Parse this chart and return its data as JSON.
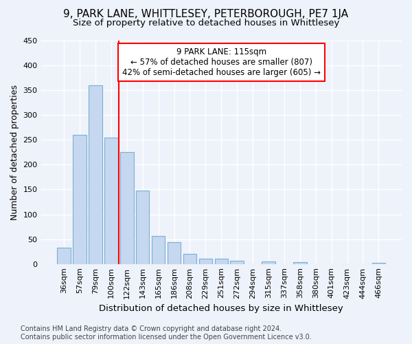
{
  "title": "9, PARK LANE, WHITTLESEY, PETERBOROUGH, PE7 1JA",
  "subtitle": "Size of property relative to detached houses in Whittlesey",
  "xlabel": "Distribution of detached houses by size in Whittlesey",
  "ylabel": "Number of detached properties",
  "categories": [
    "36sqm",
    "57sqm",
    "79sqm",
    "100sqm",
    "122sqm",
    "143sqm",
    "165sqm",
    "186sqm",
    "208sqm",
    "229sqm",
    "251sqm",
    "272sqm",
    "294sqm",
    "315sqm",
    "337sqm",
    "358sqm",
    "380sqm",
    "401sqm",
    "423sqm",
    "444sqm",
    "466sqm"
  ],
  "values": [
    33,
    260,
    360,
    255,
    225,
    148,
    57,
    44,
    20,
    11,
    10,
    7,
    0,
    5,
    0,
    4,
    0,
    0,
    0,
    0,
    3
  ],
  "bar_color": "#c5d8f0",
  "bar_edge_color": "#7bafd4",
  "vline_index": 4,
  "vline_color": "red",
  "annotation_text": "9 PARK LANE: 115sqm\n← 57% of detached houses are smaller (807)\n42% of semi-detached houses are larger (605) →",
  "annotation_box_color": "white",
  "annotation_box_edge_color": "red",
  "footer_text": "Contains HM Land Registry data © Crown copyright and database right 2024.\nContains public sector information licensed under the Open Government Licence v3.0.",
  "ylim": [
    0,
    450
  ],
  "background_color": "#eef2fa",
  "grid_color": "white",
  "title_fontsize": 11,
  "subtitle_fontsize": 9.5,
  "ylabel_fontsize": 9,
  "xlabel_fontsize": 9.5,
  "tick_fontsize": 8,
  "annotation_fontsize": 8.5,
  "footer_fontsize": 7
}
